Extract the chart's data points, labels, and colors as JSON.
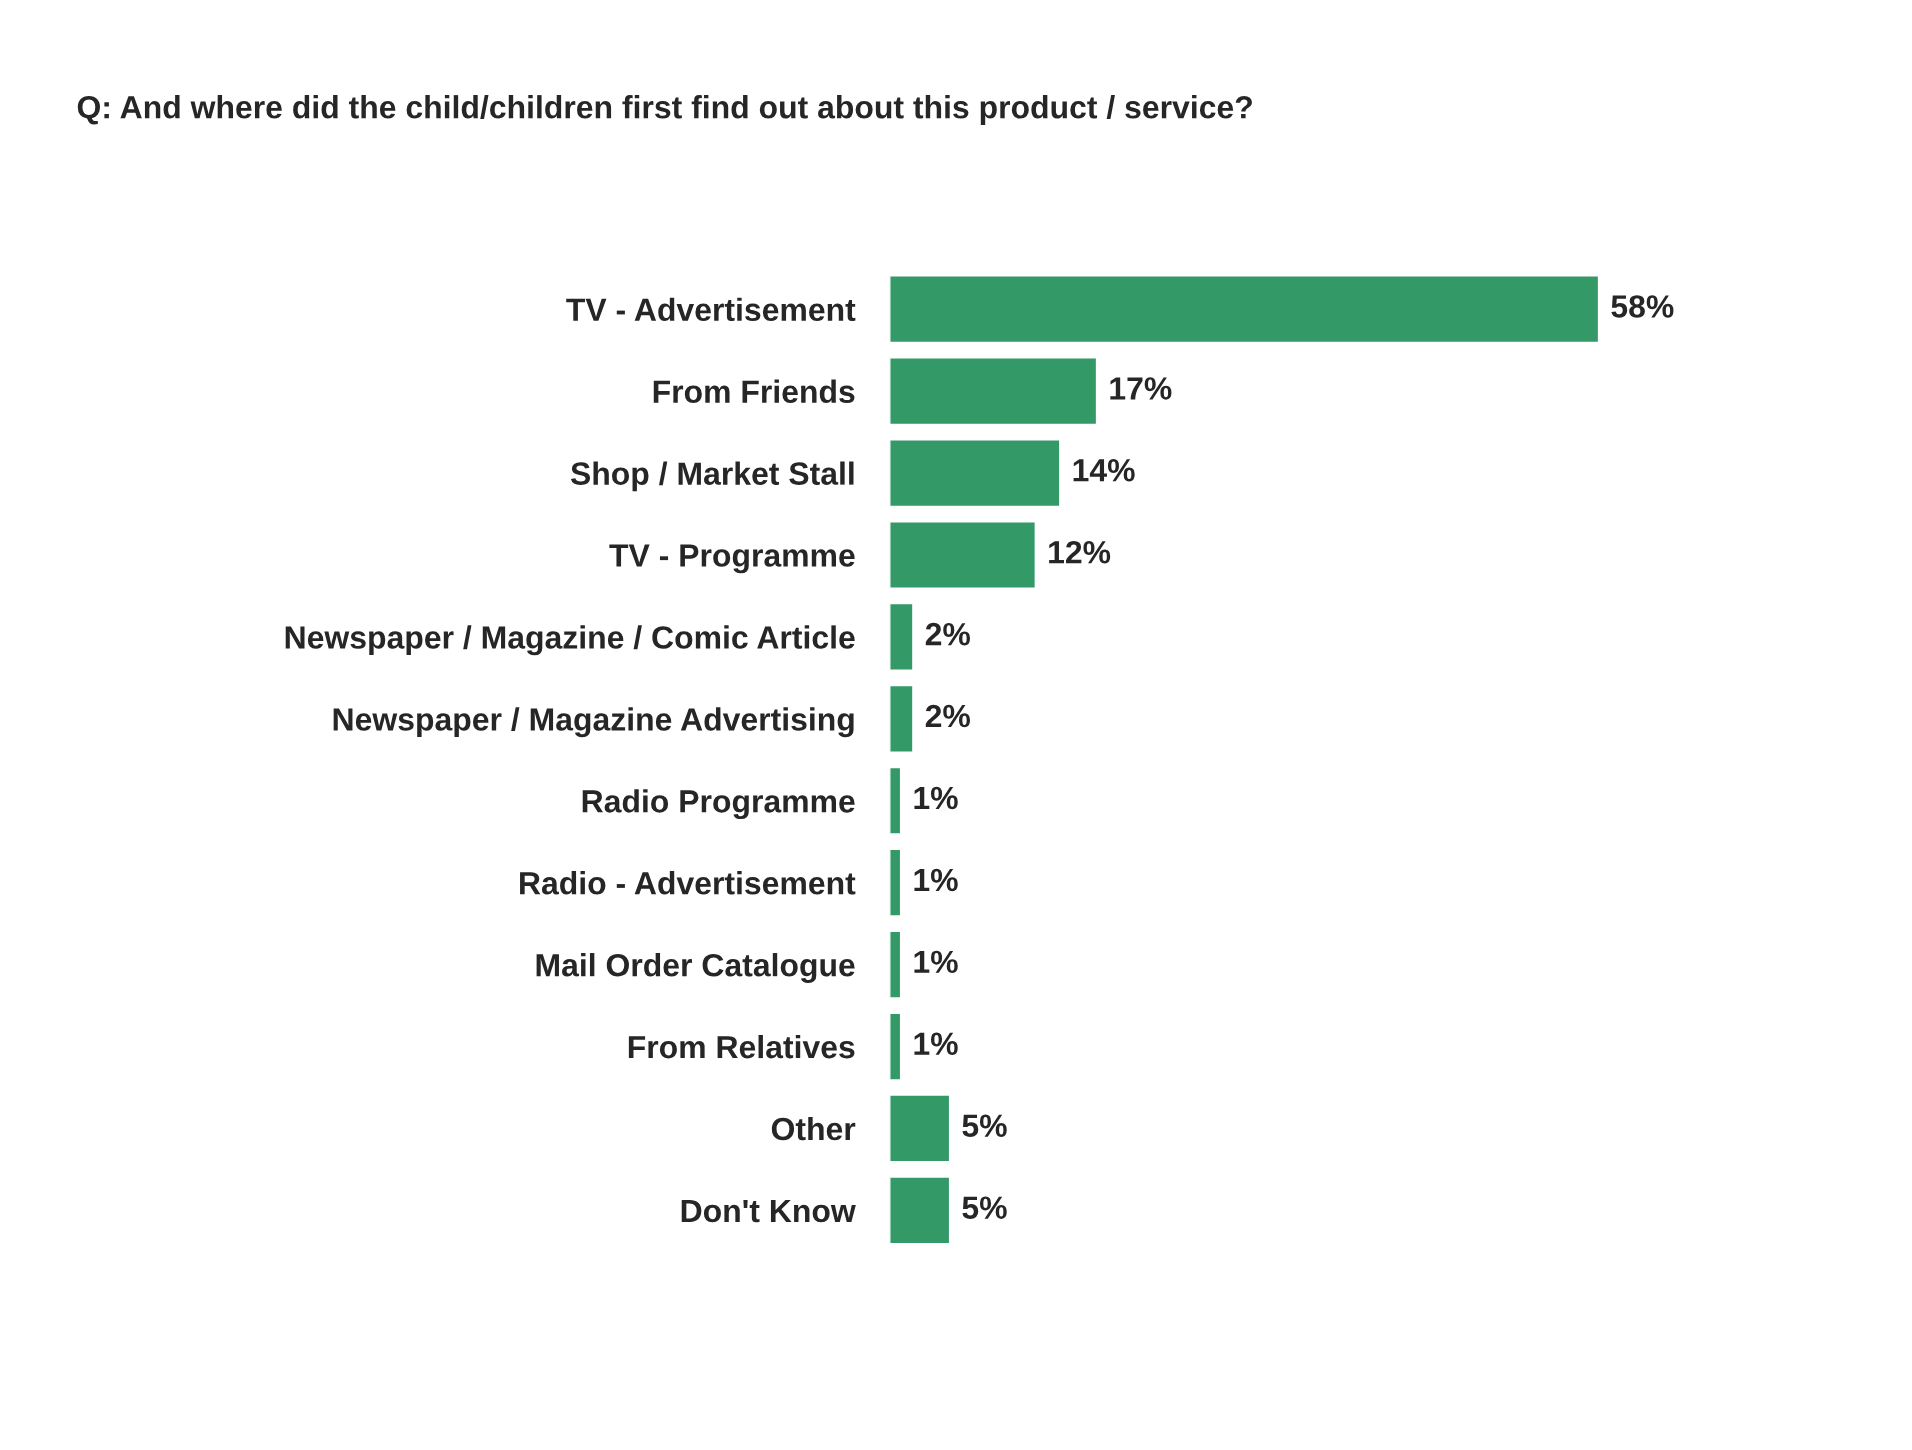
{
  "chart_data": {
    "type": "bar",
    "orientation": "horizontal",
    "title": "Q: And where did the child/children first find out about this product / service?",
    "categories": [
      "TV - Advertisement",
      "From Friends",
      "Shop / Market Stall",
      "TV - Programme",
      "Newspaper / Magazine / Comic Article",
      "Newspaper / Magazine Advertising",
      "Radio Programme",
      "Radio - Advertisement",
      "Mail Order Catalogue",
      "From Relatives",
      "Other",
      "Don't Know"
    ],
    "values": [
      58,
      17,
      14,
      12,
      2,
      2,
      1,
      1,
      1,
      1,
      5,
      5
    ],
    "value_labels": [
      "58%",
      "17%",
      "14%",
      "12%",
      "2%",
      "2%",
      "1%",
      "1%",
      "1%",
      "1%",
      "5%",
      "5%"
    ],
    "color": "#339966",
    "grid": false,
    "legend": false,
    "tick_labels": "y"
  }
}
